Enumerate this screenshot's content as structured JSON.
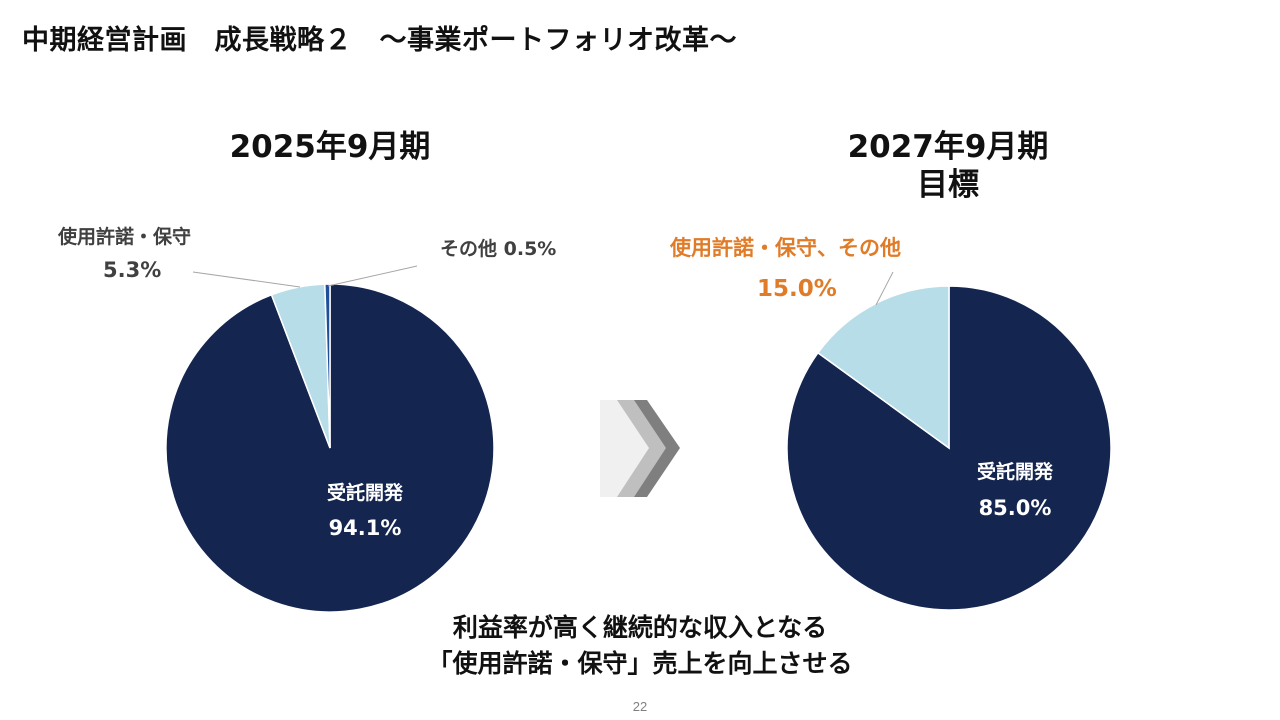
{
  "slide": {
    "title": "中期経営計画　成長戦略２　～事業ポートフォリオ改革～",
    "caption_line1": "利益率が高く継続的な収入となる",
    "caption_line2": "「使用許諾・保守」売上を向上させる",
    "page_number": "22"
  },
  "colors": {
    "navy": "#14254F",
    "light_blue": "#B7DDE8",
    "accent_blue": "#1F4E9A",
    "orange": "#E07B28",
    "arrow_grey": "#7F7F7F"
  },
  "chart_data": [
    {
      "type": "pie",
      "title": "2025年9月期",
      "slices": [
        {
          "label": "受託開発",
          "value": 94.1,
          "value_label": "94.1%",
          "color": "#14254F"
        },
        {
          "label": "使用許諾・保守",
          "value": 5.3,
          "value_label": "5.3%",
          "color": "#B7DDE8"
        },
        {
          "label": "その他",
          "value": 0.5,
          "value_label": "0.5%",
          "color": "#1F4E9A"
        }
      ]
    },
    {
      "type": "pie",
      "title_line1": "2027年9月期",
      "title_line2": "目標",
      "slices": [
        {
          "label": "受託開発",
          "value": 85.0,
          "value_label": "85.0%",
          "color": "#14254F"
        },
        {
          "label": "使用許諾・保守、その他",
          "value": 15.0,
          "value_label": "15.0%",
          "color": "#B7DDE8"
        }
      ]
    }
  ]
}
